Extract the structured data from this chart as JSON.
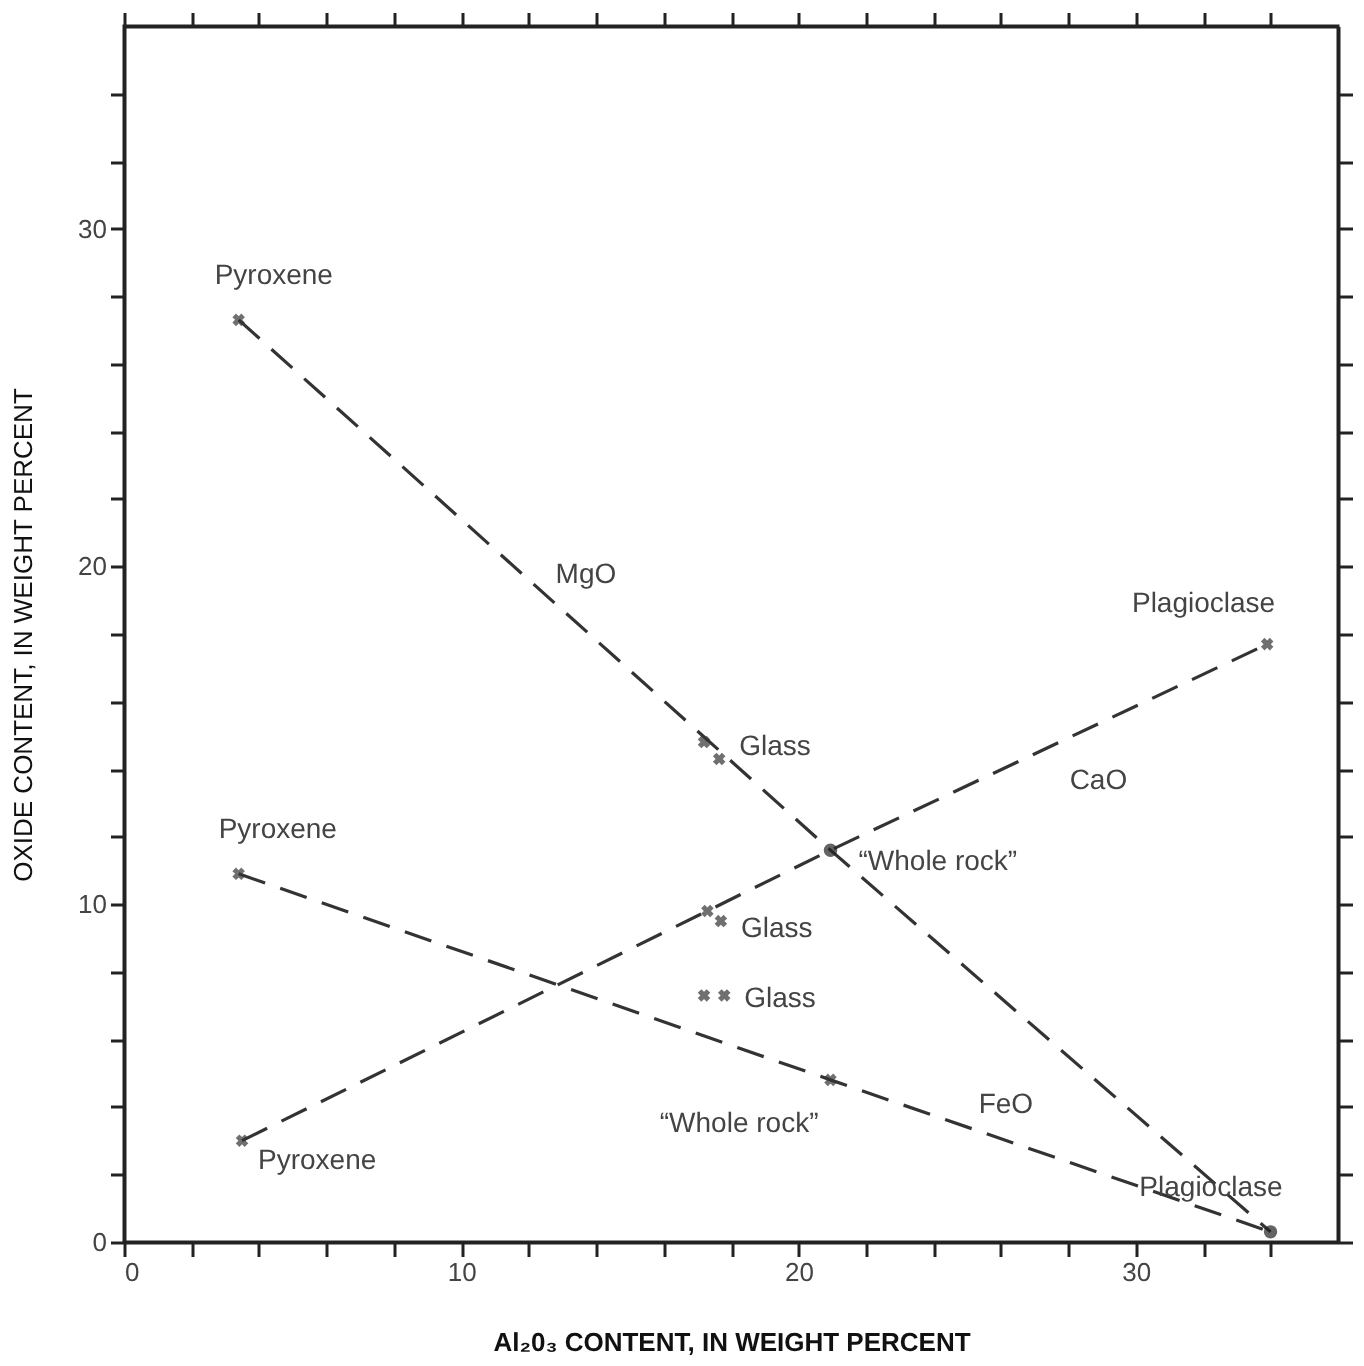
{
  "chart_data": {
    "type": "line",
    "xlabel": "Al₂0₃ CONTENT, IN WEIGHT PERCENT",
    "ylabel": "OXIDE CONTENT, IN WEIGHT PERCENT",
    "xlim": [
      0,
      36
    ],
    "ylim": [
      0,
      36
    ],
    "xticks": [
      0,
      {
        "value": 2,
        "label": null
      },
      {
        "value": 4,
        "label": null
      },
      {
        "value": 6,
        "label": null
      },
      {
        "value": 8,
        "label": null
      },
      10,
      {
        "value": 12,
        "label": null
      },
      {
        "value": 14,
        "label": null
      },
      {
        "value": 16,
        "label": null
      },
      {
        "value": 18,
        "label": null
      },
      20,
      {
        "value": 22,
        "label": null
      },
      {
        "value": 24,
        "label": null
      },
      {
        "value": 26,
        "label": null
      },
      {
        "value": 28,
        "label": null
      },
      30,
      {
        "value": 32,
        "label": null
      },
      {
        "value": 34,
        "label": null
      }
    ],
    "yticks": [
      0,
      {
        "value": 2,
        "label": null
      },
      {
        "value": 4,
        "label": null
      },
      {
        "value": 6,
        "label": null
      },
      {
        "value": 8,
        "label": null
      },
      10,
      {
        "value": 12,
        "label": null
      },
      {
        "value": 14,
        "label": null
      },
      {
        "value": 16,
        "label": null
      },
      {
        "value": 18,
        "label": null
      },
      20,
      {
        "value": 22,
        "label": null
      },
      {
        "value": 24,
        "label": null
      },
      {
        "value": 26,
        "label": null
      },
      {
        "value": 28,
        "label": null
      },
      30,
      {
        "value": 32,
        "label": null
      },
      {
        "value": 34,
        "label": null
      }
    ],
    "grid": false,
    "series": [
      {
        "name": "MgO",
        "color": "#333333",
        "line_style": "dashed",
        "marker": "none",
        "x": [
          3.4,
          20.95,
          34.0
        ],
        "values": [
          27.3,
          11.6,
          0.3
        ]
      },
      {
        "name": "CaO",
        "color": "#333333",
        "line_style": "dashed",
        "marker": "none",
        "x": [
          3.5,
          20.95,
          33.9
        ],
        "values": [
          3.0,
          11.6,
          17.7
        ]
      },
      {
        "name": "FeO",
        "color": "#333333",
        "line_style": "dashed",
        "marker": "none",
        "x": [
          3.4,
          20.95,
          34.0
        ],
        "values": [
          10.9,
          4.8,
          0.3
        ]
      },
      {
        "type": "scatter",
        "color": "#333333",
        "marker": "cross",
        "x": [
          3.4,
          17.2,
          17.65,
          3.5,
          17.3,
          17.7,
          33.9,
          3.4,
          17.2,
          17.8,
          20.95
        ],
        "values": [
          27.3,
          14.8,
          14.3,
          3.0,
          9.8,
          9.5,
          17.7,
          10.9,
          7.3,
          7.3,
          4.8
        ]
      },
      {
        "type": "scatter",
        "color": "#222222",
        "marker": "circle",
        "x": [
          20.95,
          34.0
        ],
        "values": [
          11.6,
          0.3
        ]
      }
    ],
    "annotations": [
      {
        "text": "Pyroxene",
        "x": 3.4,
        "y": 27.3
      },
      {
        "text": "Glass",
        "x": 17.65,
        "y": 14.3
      },
      {
        "text": "“Whole rock”",
        "x": 20.95,
        "y": 11.6
      },
      {
        "text": "Plagioclase",
        "x": 33.9,
        "y": 17.7
      },
      {
        "text": "Pyroxene",
        "x": 3.4,
        "y": 10.9
      },
      {
        "text": "Glass",
        "x": 17.7,
        "y": 9.5
      },
      {
        "text": "Glass",
        "x": 17.8,
        "y": 7.3
      },
      {
        "text": "“Whole rock”",
        "x": 20.95,
        "y": 4.8
      },
      {
        "text": "Plagioclase",
        "x": 34.0,
        "y": 0.3
      },
      {
        "text": "Pyroxene",
        "x": 3.5,
        "y": 3.0
      }
    ]
  }
}
